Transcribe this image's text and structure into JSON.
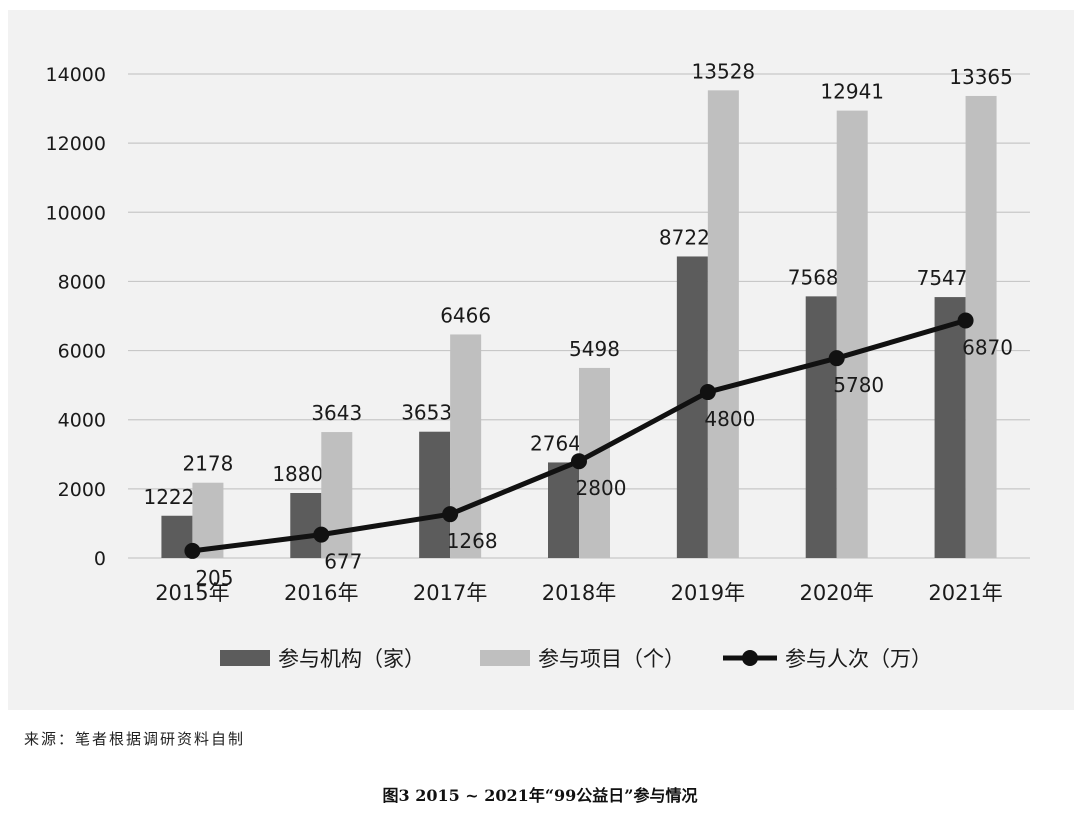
{
  "chart_data": {
    "type": "bar",
    "categories": [
      "2015年",
      "2016年",
      "2017年",
      "2018年",
      "2019年",
      "2020年",
      "2021年"
    ],
    "series": [
      {
        "name": "参与机构（家）",
        "kind": "bar",
        "color": "#5c5c5c",
        "values": [
          1222,
          1880,
          3653,
          2764,
          8722,
          7568,
          7547
        ]
      },
      {
        "name": "参与项目（个）",
        "kind": "bar",
        "color": "#bfbfbf",
        "values": [
          2178,
          3643,
          6466,
          5498,
          13528,
          12941,
          13365
        ]
      },
      {
        "name": "参与人次（万）",
        "kind": "line",
        "color": "#111111",
        "values": [
          205,
          677,
          1268,
          2800,
          4800,
          5780,
          6870
        ]
      }
    ],
    "yticks": [
      0,
      2000,
      4000,
      6000,
      8000,
      10000,
      12000,
      14000
    ],
    "ylim": [
      0,
      14000
    ],
    "grid": true,
    "legend_position": "bottom"
  },
  "source_note": "来源：笔者根据调研资料自制",
  "caption": "图3 2015 ~ 2021年“99公益日”参与情况"
}
